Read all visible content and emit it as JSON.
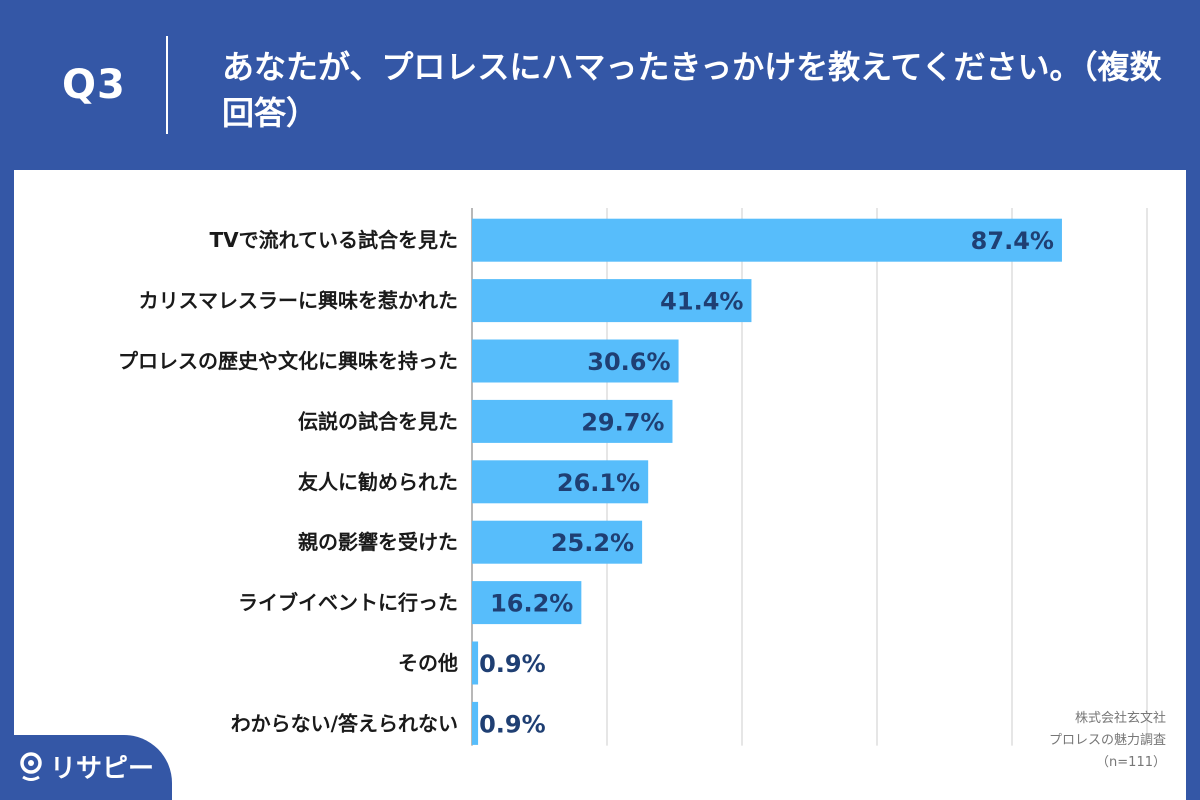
{
  "header": {
    "question_number": "Q3",
    "title": "あなたが、プロレスにハマったきっかけを教えてください。（複数回答）"
  },
  "chart_data": {
    "type": "bar",
    "orientation": "horizontal",
    "categories": [
      "TVで流れている試合を見た",
      "カリスマレスラーに興味を惹かれた",
      "プロレスの歴史や文化に興味を持った",
      "伝説の試合を見た",
      "友人に勧められた",
      "親の影響を受けた",
      "ライブイベントに行った",
      "その他",
      "わからない/答えられない"
    ],
    "values": [
      87.4,
      41.4,
      30.6,
      29.7,
      26.1,
      25.2,
      16.2,
      0.9,
      0.9
    ],
    "value_labels": [
      "87.4%",
      "41.4%",
      "30.6%",
      "29.7%",
      "26.1%",
      "25.2%",
      "16.2%",
      "0.9%",
      "0.9%"
    ],
    "xlim": [
      0,
      100
    ],
    "grid": true,
    "bar_color": "#57bdfb"
  },
  "source": {
    "company": "株式会社玄文社",
    "survey": "プロレスの魅力調査",
    "sample": "（n=111）"
  },
  "brand": {
    "logo_text": "リサピー",
    "logo_icon": "pin-icon"
  }
}
